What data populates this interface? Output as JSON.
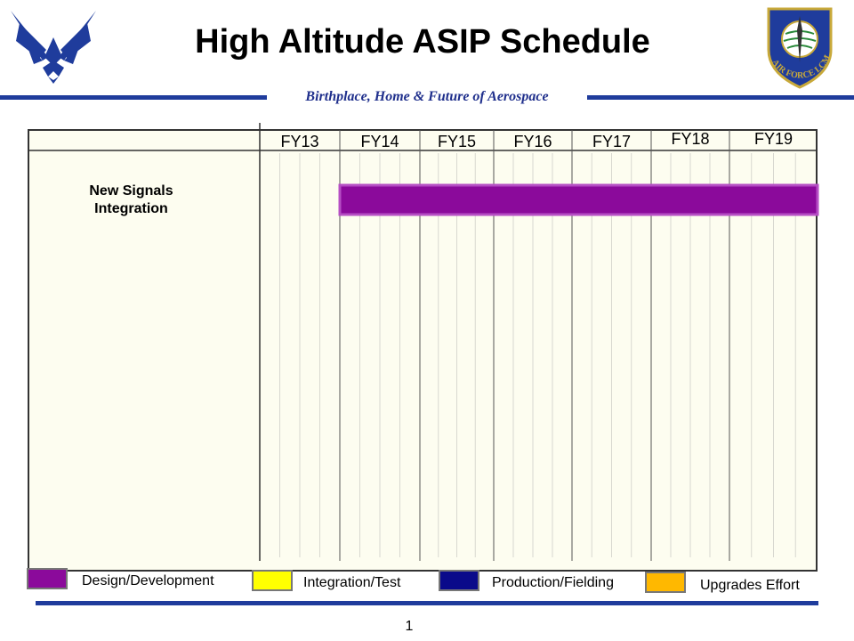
{
  "slide": {
    "title": "High Altitude ASIP Schedule",
    "subtitle": "Birthplace, Home & Future of Aerospace",
    "page_number": "1"
  },
  "logos": {
    "left_icon": "air-force-symbol-icon",
    "right_icon": "air-force-lcmc-seal-icon",
    "seal_text": "AIR FORCE LCMC"
  },
  "chart_data": {
    "type": "gantt",
    "periods": [
      "FY13",
      "FY14",
      "FY15",
      "FY16",
      "FY17",
      "FY18",
      "FY19"
    ],
    "tasks": [
      {
        "name": "New Signals Integration",
        "category": "Design/Development",
        "start": "FY14",
        "end": "FY19"
      }
    ],
    "legend": [
      {
        "label": "Design/Development",
        "color": "#8b0a9b"
      },
      {
        "label": "Integration/Test",
        "color": "#ffff00"
      },
      {
        "label": "Production/Fielding",
        "color": "#0a0a8a"
      },
      {
        "label": "Upgrades Effort",
        "color": "#ffb800"
      }
    ]
  },
  "colors": {
    "brand_blue": "#1f3c9c",
    "chart_background": "#fdfdf0"
  }
}
